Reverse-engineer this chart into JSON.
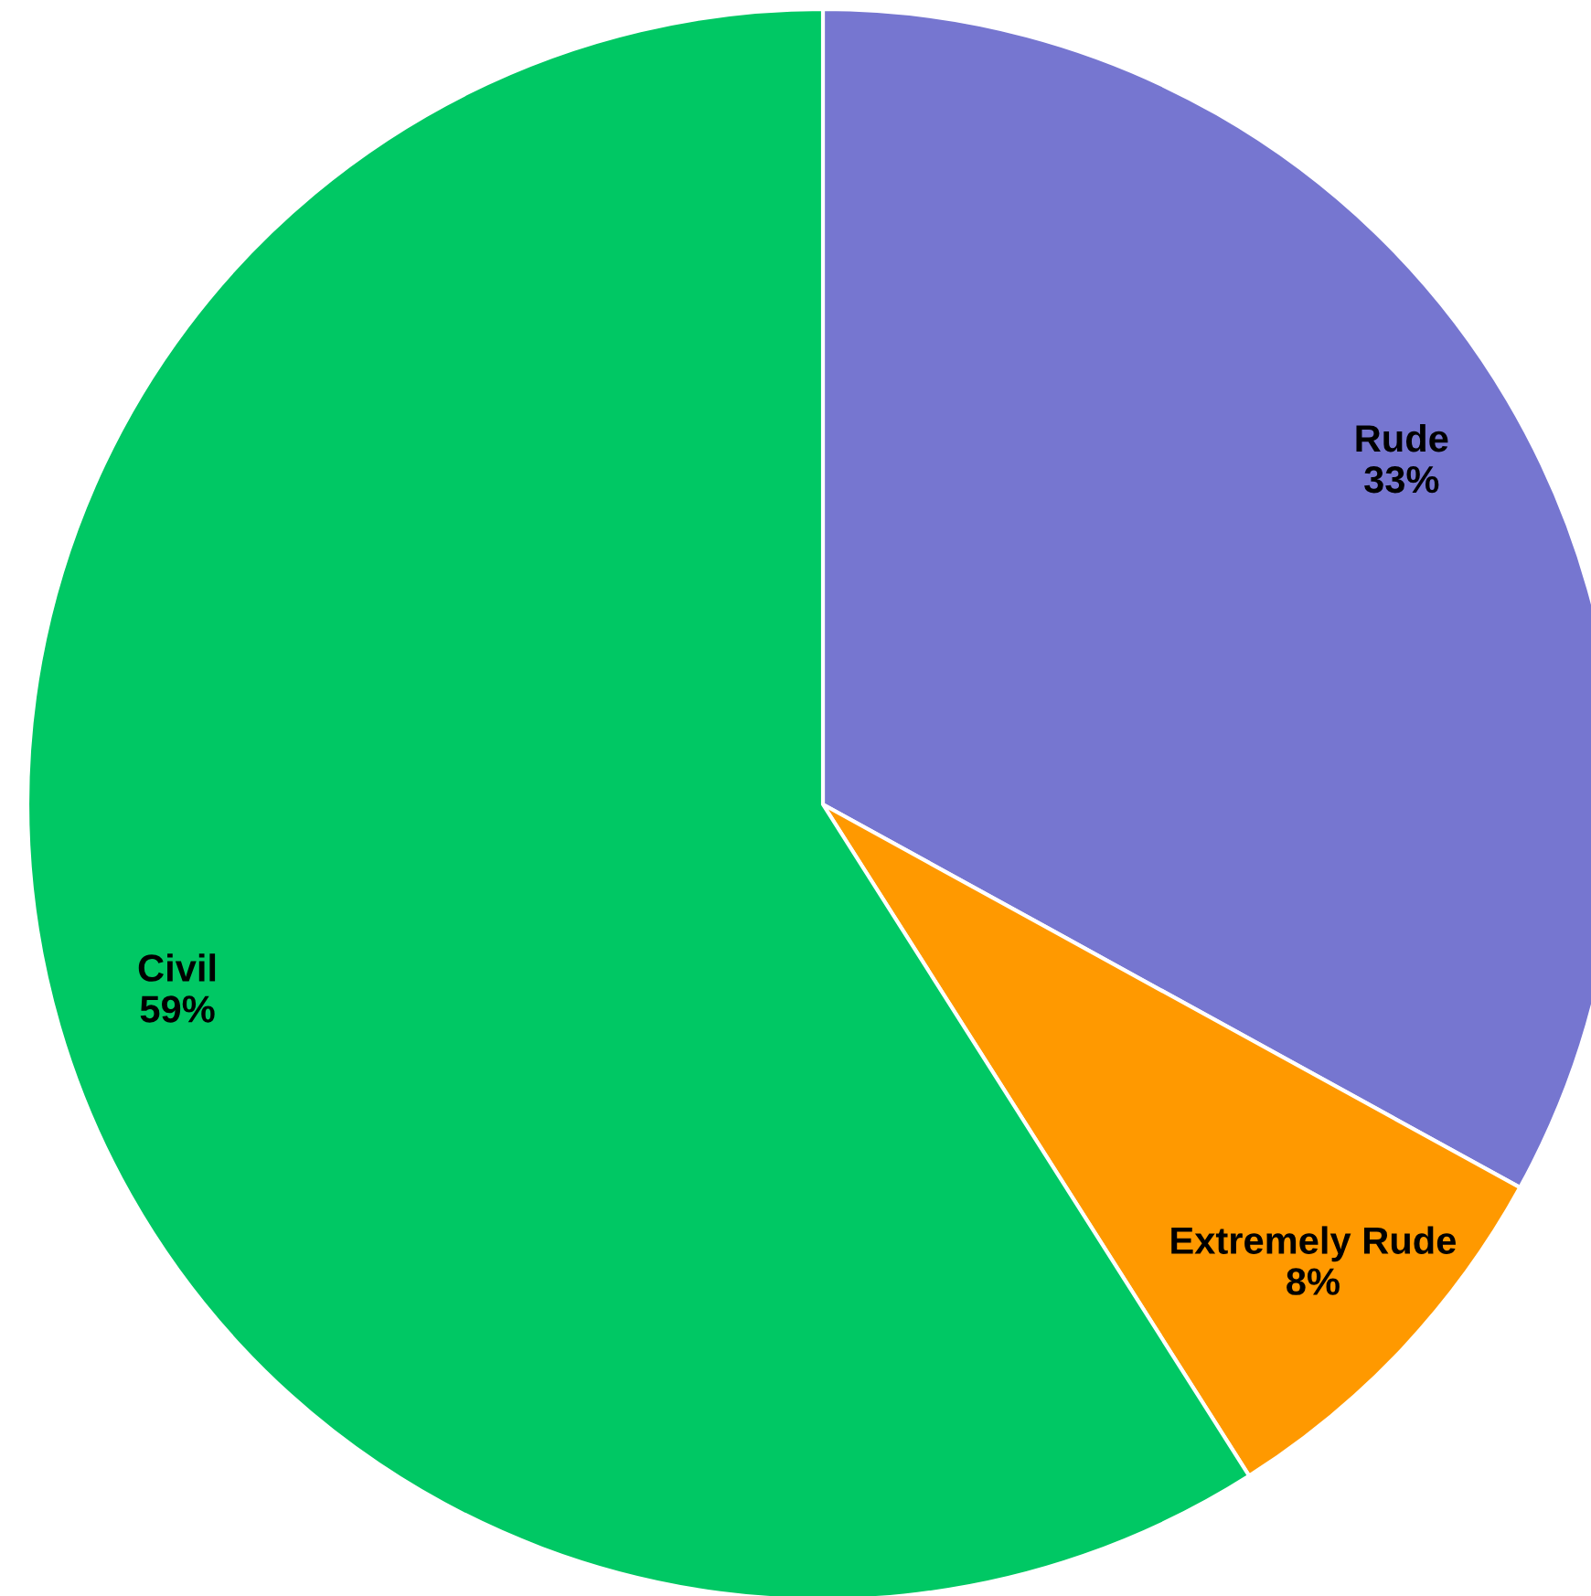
{
  "chart_data": {
    "type": "pie",
    "categories": [
      "Rude",
      "Extremely Rude",
      "Civil"
    ],
    "values": [
      33,
      8,
      59
    ],
    "value_labels": [
      "33%",
      "8%",
      "59%"
    ],
    "colors": [
      "#7676d0",
      "#ff9900",
      "#00c864"
    ]
  }
}
